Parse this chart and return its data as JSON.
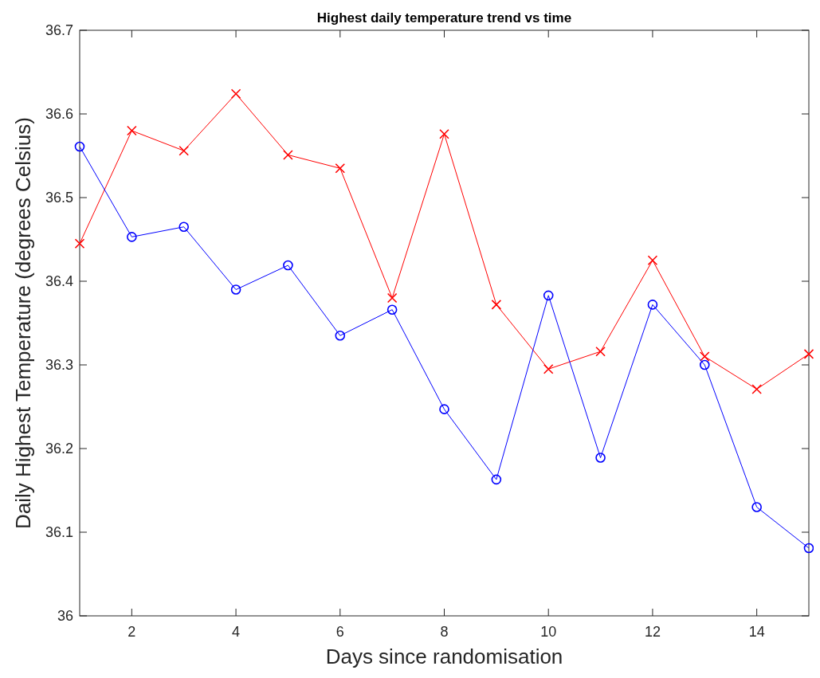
{
  "chart_data": {
    "type": "line",
    "title": "Highest daily temperature trend vs time",
    "xlabel": "Days since randomisation",
    "ylabel": "Daily Highest Temperature (degrees Celsius)",
    "x": [
      1,
      2,
      3,
      4,
      5,
      6,
      7,
      8,
      9,
      10,
      11,
      12,
      13,
      14,
      15
    ],
    "series": [
      {
        "color": "#ff0000",
        "marker": "cross",
        "values": [
          36.445,
          36.58,
          36.556,
          36.624,
          36.551,
          36.535,
          36.38,
          36.576,
          36.372,
          36.295,
          36.316,
          36.425,
          36.31,
          36.271,
          36.313
        ]
      },
      {
        "color": "#0000ff",
        "marker": "circle",
        "values": [
          36.561,
          36.453,
          36.465,
          36.39,
          36.419,
          36.335,
          36.366,
          36.247,
          36.163,
          36.383,
          36.189,
          36.372,
          36.3,
          36.13,
          36.081
        ]
      }
    ],
    "xlim": [
      1,
      15
    ],
    "xticks": [
      2,
      4,
      6,
      8,
      10,
      12,
      14
    ],
    "ylim": [
      36,
      36.7
    ],
    "yticks": [
      36,
      36.1,
      36.2,
      36.3,
      36.4,
      36.5,
      36.6,
      36.7
    ],
    "grid": false,
    "line_style": "solid"
  }
}
